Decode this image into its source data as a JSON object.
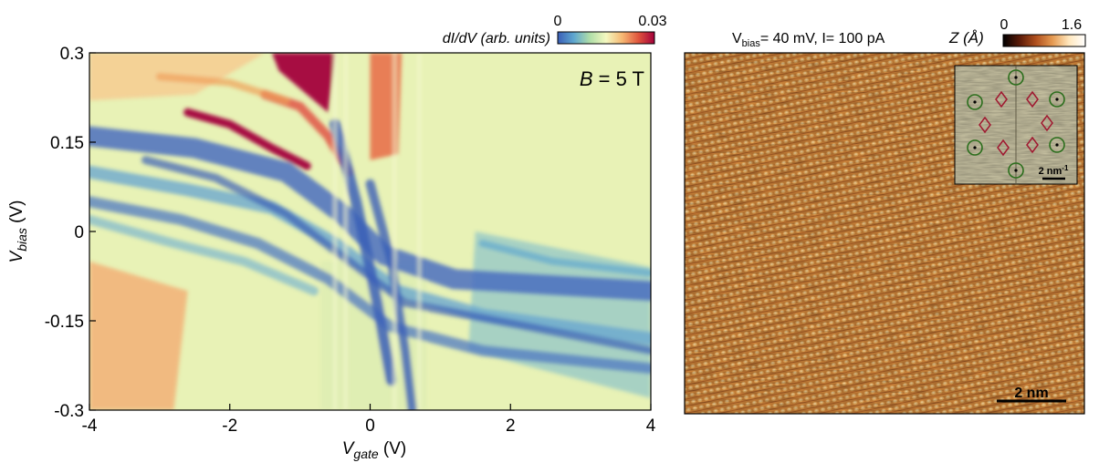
{
  "chart_data": [
    {
      "type": "heatmap",
      "panel": "left",
      "title": "",
      "annotation": "B = 5 T",
      "annotation_var": "B",
      "annotation_rest": " = 5 T",
      "xlabel_main": "V",
      "xlabel_sub": "gate",
      "xlabel_unit": " (V)",
      "ylabel_main": "V",
      "ylabel_sub": "bias",
      "ylabel_unit": " (V)",
      "xlim": [
        -4,
        4
      ],
      "ylim": [
        -0.3,
        0.3
      ],
      "xticks": [
        -4,
        -2,
        0,
        2,
        4
      ],
      "xtick_labels": [
        "-4",
        "-2",
        "0",
        "2",
        "4"
      ],
      "yticks": [
        0.3,
        0.15,
        0,
        -0.15,
        -0.3
      ],
      "ytick_labels": [
        "0.3",
        "0.15",
        "0",
        "-0.15",
        "-0.3"
      ],
      "colorbar": {
        "label": "dI/dV (arb. units)",
        "label_main": "dI/dV",
        "label_unit": " (arb. units)",
        "min": 0,
        "max": 0.03,
        "min_label": "0",
        "max_label": "0.03",
        "colors": [
          "#3b5fb7",
          "#5fa7cf",
          "#b0dea8",
          "#f4f8c0",
          "#f6b873",
          "#e0553d",
          "#a3003b"
        ]
      },
      "features": {
        "landau_levels_description": "diagonal bands descending from upper-left to lower-right",
        "charge_transition_gate_range": [
          -0.8,
          0.8
        ]
      }
    },
    {
      "type": "heatmap",
      "panel": "right",
      "title": "Vbias= 40 mV, I= 100 pA",
      "title_parts": {
        "v": "V",
        "sub": "bias",
        "rest": "= 40 mV, I= 100 pA"
      },
      "scalebar_label": "2 nm",
      "colorbar": {
        "label": "Z (Å)",
        "min": 0,
        "max": 1.6,
        "min_label": "0",
        "max_label": "1.6",
        "colors": [
          "#000000",
          "#5a1a08",
          "#b0501e",
          "#e59a52",
          "#ffe7bd",
          "#ffffff"
        ]
      },
      "inset": {
        "type": "fft",
        "scalebar_label": "2 nm",
        "scalebar_sup": "-1",
        "bragg_peaks": 6,
        "superlattice_peaks": 6,
        "circle_color": "#2b6e1c",
        "diamond_color": "#a01830"
      }
    }
  ]
}
